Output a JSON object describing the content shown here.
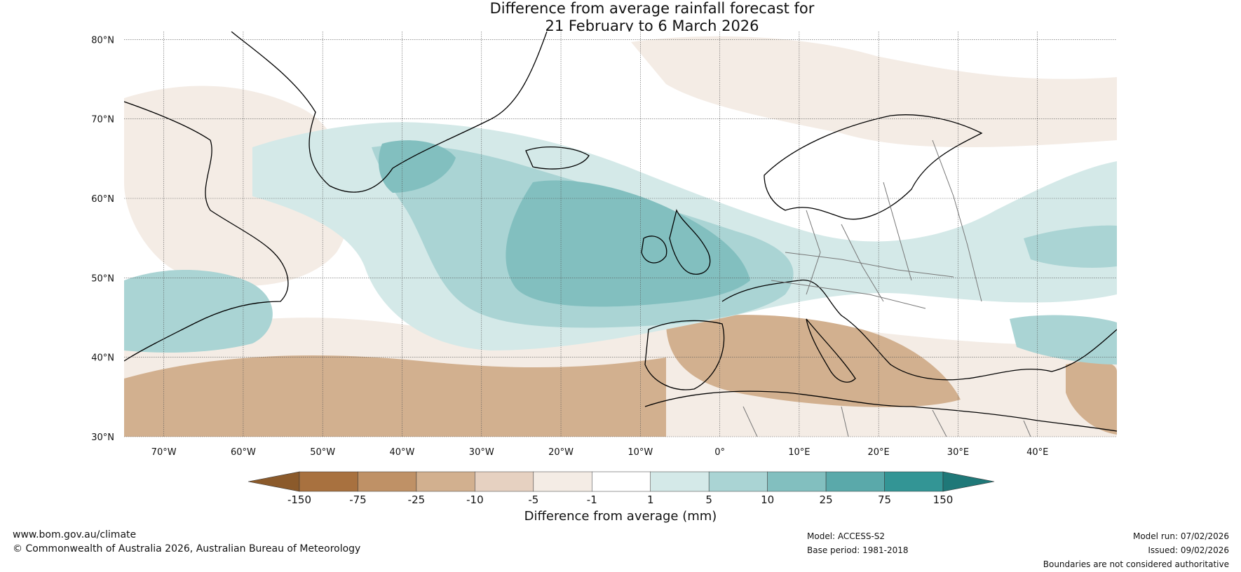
{
  "title": {
    "line1": "Difference from average rainfall forecast for",
    "line2": "21 February to 6 March 2026"
  },
  "map": {
    "lon_range": [
      -75,
      50
    ],
    "lat_range": [
      30,
      81
    ],
    "lat_ticks": [
      "30°N",
      "40°N",
      "50°N",
      "60°N",
      "70°N",
      "80°N"
    ],
    "lon_ticks": [
      "70°W",
      "60°W",
      "50°W",
      "40°W",
      "30°W",
      "20°W",
      "10°W",
      "0°",
      "10°E",
      "20°E",
      "30°E",
      "40°E"
    ]
  },
  "colorbar": {
    "labels": [
      "-150",
      "-75",
      "-25",
      "-10",
      "-5",
      "-1",
      "1",
      "5",
      "10",
      "25",
      "75",
      "150"
    ],
    "colors": [
      "#8b5a2b",
      "#a8713f",
      "#bf9166",
      "#d2b08f",
      "#e6d1c1",
      "#f4ece5",
      "#ffffff",
      "#d4e9e8",
      "#aad4d4",
      "#82bfbf",
      "#5aa9aa",
      "#339595",
      "#1f7878"
    ],
    "label": "Difference from average (mm)"
  },
  "footer": {
    "website": "www.bom.gov.au/climate",
    "copyright": "© Commonwealth of Australia 2026, Australian Bureau of Meteorology",
    "model": "Model: ACCESS-S2",
    "base_period": "Base period: 1981-2018",
    "model_run": "Model run: 07/02/2026",
    "issued": "Issued: 09/02/2026",
    "disclaimer": "Boundaries are not considered authoritative"
  }
}
